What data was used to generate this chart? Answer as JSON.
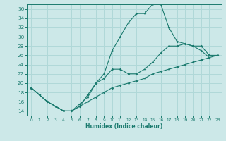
{
  "xlabel": "Humidex (Indice chaleur)",
  "xlim": [
    -0.5,
    23.5
  ],
  "ylim": [
    13,
    37
  ],
  "yticks": [
    14,
    16,
    18,
    20,
    22,
    24,
    26,
    28,
    30,
    32,
    34,
    36
  ],
  "xticks": [
    0,
    1,
    2,
    3,
    4,
    5,
    6,
    7,
    8,
    9,
    10,
    11,
    12,
    13,
    14,
    15,
    16,
    17,
    18,
    19,
    20,
    21,
    22,
    23
  ],
  "bg_color": "#cce8e8",
  "line_color": "#1a7a6e",
  "grid_color": "#b0d8d8",
  "line1_x": [
    0,
    1,
    2,
    3,
    4,
    5,
    6,
    7,
    8,
    9,
    10,
    11,
    12,
    13,
    14,
    15,
    16,
    17,
    18,
    19,
    20,
    21,
    22
  ],
  "line1_y": [
    19,
    17.5,
    16,
    15,
    14,
    14,
    15,
    17.5,
    20,
    22,
    27,
    30,
    33,
    35,
    35,
    37,
    37,
    32,
    29,
    28.5,
    28,
    27,
    25.5
  ],
  "line2_x": [
    0,
    1,
    2,
    3,
    4,
    5,
    6,
    7,
    8,
    9,
    10,
    11,
    12,
    13,
    14,
    15,
    16,
    17,
    18,
    19,
    20,
    21,
    22,
    23
  ],
  "line2_y": [
    19,
    17.5,
    16,
    15,
    14,
    14,
    15.5,
    17,
    20,
    21,
    23,
    23,
    22,
    22,
    23,
    24.5,
    26.5,
    28,
    28,
    28.5,
    28,
    28,
    26,
    26
  ],
  "line3_x": [
    0,
    1,
    2,
    3,
    4,
    5,
    6,
    7,
    8,
    9,
    10,
    11,
    12,
    13,
    14,
    15,
    16,
    17,
    18,
    19,
    20,
    21,
    22,
    23
  ],
  "line3_y": [
    19,
    17.5,
    16,
    15,
    14,
    14,
    15,
    16,
    17,
    18,
    19,
    19.5,
    20,
    20.5,
    21,
    22,
    22.5,
    23,
    23.5,
    24,
    24.5,
    25,
    25.5,
    26
  ]
}
